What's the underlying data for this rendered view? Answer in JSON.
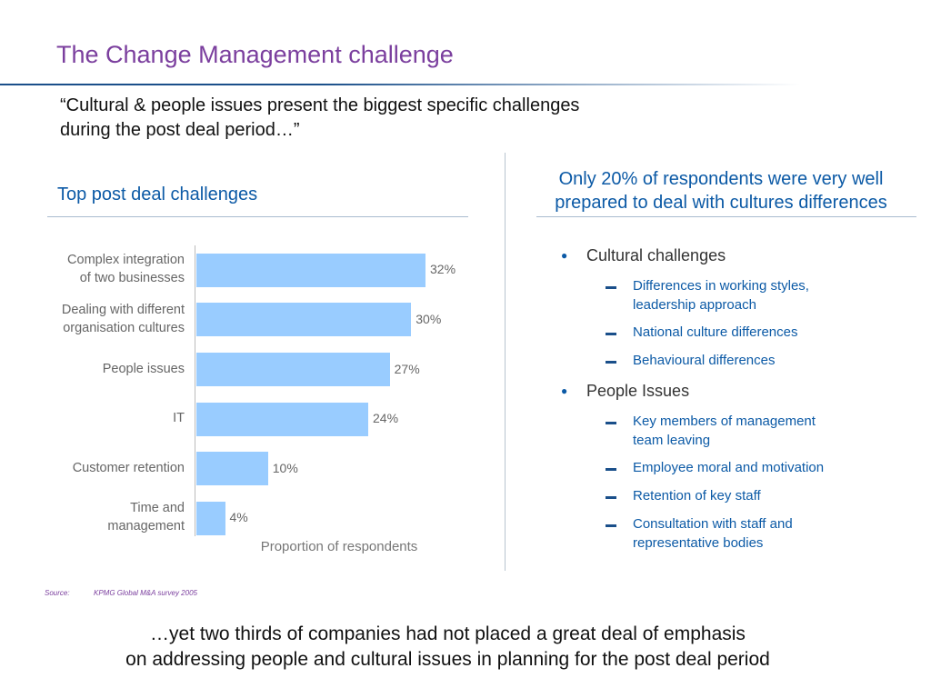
{
  "title": "The Change Management challenge",
  "quote": "“Cultural & people issues present the biggest specific challenges\nduring the post deal period…”",
  "chart_data": {
    "type": "bar",
    "orientation": "horizontal",
    "title": "Top post deal challenges",
    "categories": [
      "Complex integration\nof two businesses",
      "Dealing with different\norganisation cultures",
      "People issues",
      "IT",
      "Customer retention",
      "Time and\nmanagement"
    ],
    "values": [
      32,
      30,
      27,
      24,
      10,
      4
    ],
    "value_labels": [
      "32%",
      "30%",
      "27%",
      "24%",
      "10%",
      "4%"
    ],
    "xlabel": "Proportion of respondents",
    "color": "#99ccff"
  },
  "panel": {
    "title": "Only 20% of respondents were very well\nprepared to deal with cultures differences",
    "bullets": [
      {
        "text": "Cultural challenges",
        "items": [
          "Differences in working styles,\nleadership approach",
          "National culture differences",
          "Behavioural differences"
        ]
      },
      {
        "text": "People Issues",
        "items": [
          "Key members of management\nteam leaving",
          "Employee moral and motivation",
          "Retention of key staff",
          "Consultation with staff and\nrepresentative bodies"
        ]
      }
    ]
  },
  "source": {
    "label": "Source:",
    "text": "KPMG Global M&A survey 2005"
  },
  "conclusion": "…yet two thirds of companies had not placed a great deal of emphasis\non addressing people and cultural issues in planning for the post deal period"
}
